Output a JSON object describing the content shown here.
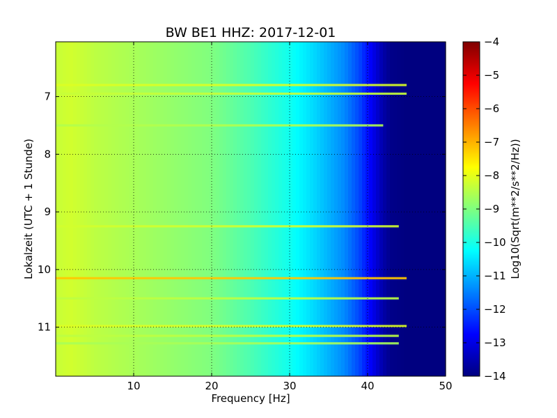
{
  "chart_data": {
    "type": "heatmap",
    "title": "BW BE1 HHZ: 2017-12-01",
    "xlabel": "Frequency [Hz]",
    "ylabel": "Lokalzeit (UTC + 1 Stunde)",
    "xlim": [
      0,
      50
    ],
    "ylim": [
      11.85,
      6.05
    ],
    "y_inverted": true,
    "xticks": [
      10,
      20,
      30,
      40,
      50
    ],
    "yticks": [
      7,
      8,
      9,
      10,
      11
    ],
    "grid": true,
    "colormap": "jet",
    "colorbar": {
      "label": "Log10(Sqrt(m**2/s**2/Hz))",
      "range": [
        -14,
        -4
      ],
      "ticks": [
        -4,
        -5,
        -6,
        -7,
        -8,
        -9,
        -10,
        -11,
        -12,
        -13,
        -14
      ]
    },
    "spectrum_profile": {
      "frequency_hz": [
        0,
        2,
        5,
        10,
        15,
        20,
        25,
        30,
        33,
        35,
        37,
        39,
        40,
        41,
        42,
        43,
        45,
        50
      ],
      "log10_amplitude": [
        -8.3,
        -8.2,
        -8.4,
        -8.6,
        -8.8,
        -9.0,
        -9.5,
        -10.1,
        -10.6,
        -11.0,
        -11.4,
        -12.1,
        -12.6,
        -13.1,
        -13.6,
        -13.9,
        -14.0,
        -14.0
      ]
    },
    "strong_bands": [
      {
        "time_h": 6.8,
        "fmax_hz": 45,
        "level": -8.1
      },
      {
        "time_h": 6.95,
        "fmax_hz": 45,
        "level": -8.3
      },
      {
        "time_h": 7.5,
        "fmax_hz": 42,
        "level": -8.5
      },
      {
        "time_h": 9.25,
        "fmax_hz": 44,
        "level": -8.2
      },
      {
        "time_h": 10.15,
        "fmax_hz": 45,
        "level": -7.2
      },
      {
        "time_h": 10.5,
        "fmax_hz": 44,
        "level": -8.4
      },
      {
        "time_h": 10.98,
        "fmax_hz": 45,
        "level": -8.1
      },
      {
        "time_h": 11.15,
        "fmax_hz": 44,
        "level": -8.4
      },
      {
        "time_h": 11.28,
        "fmax_hz": 44,
        "level": -8.6
      }
    ]
  }
}
